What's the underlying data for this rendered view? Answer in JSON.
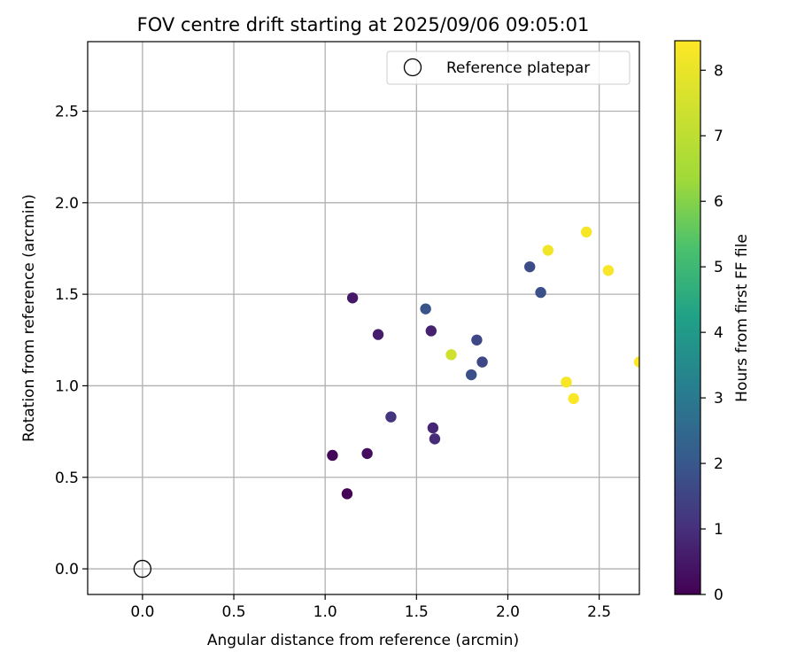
{
  "chart_data": {
    "type": "scatter",
    "title": "FOV centre drift starting at 2025/09/06 09:05:01",
    "xlabel": "Angular distance from reference (arcmin)",
    "ylabel": "Rotation from reference (arcmin)",
    "xlim": [
      -0.3,
      2.72
    ],
    "ylim": [
      -0.14,
      2.88
    ],
    "x_ticks": [
      0.0,
      0.5,
      1.0,
      1.5,
      2.0,
      2.5
    ],
    "x_tick_labels": [
      "0.0",
      "0.5",
      "1.0",
      "1.5",
      "2.0",
      "2.5"
    ],
    "y_ticks": [
      0.0,
      0.5,
      1.0,
      1.5,
      2.0,
      2.5
    ],
    "y_tick_labels": [
      "0.0",
      "0.5",
      "1.0",
      "1.5",
      "2.0",
      "2.5"
    ],
    "grid": true,
    "legend": {
      "position": "top-right",
      "entries": [
        "Reference platepar"
      ]
    },
    "reference_point": {
      "x": 0.0,
      "y": 0.0,
      "label": "Reference platepar"
    },
    "colorbar": {
      "label": "Hours from first FF file",
      "colormap": "viridis",
      "range": [
        0,
        8.45
      ],
      "ticks": [
        0,
        1,
        2,
        3,
        4,
        5,
        6,
        7,
        8
      ],
      "tick_labels": [
        "0",
        "1",
        "2",
        "3",
        "4",
        "5",
        "6",
        "7",
        "8"
      ]
    },
    "points": [
      {
        "x": 1.12,
        "y": 0.41,
        "hours": 0.05
      },
      {
        "x": 1.04,
        "y": 0.62,
        "hours": 0.15
      },
      {
        "x": 1.23,
        "y": 0.63,
        "hours": 0.25
      },
      {
        "x": 1.15,
        "y": 1.48,
        "hours": 0.5
      },
      {
        "x": 1.29,
        "y": 1.28,
        "hours": 0.6
      },
      {
        "x": 1.58,
        "y": 1.3,
        "hours": 0.7
      },
      {
        "x": 1.59,
        "y": 0.77,
        "hours": 0.8
      },
      {
        "x": 1.6,
        "y": 0.71,
        "hours": 0.9
      },
      {
        "x": 1.36,
        "y": 0.83,
        "hours": 1.1
      },
      {
        "x": 1.83,
        "y": 1.25,
        "hours": 1.6
      },
      {
        "x": 1.8,
        "y": 1.06,
        "hours": 1.8
      },
      {
        "x": 1.86,
        "y": 1.13,
        "hours": 1.6
      },
      {
        "x": 1.55,
        "y": 1.42,
        "hours": 1.9
      },
      {
        "x": 2.12,
        "y": 1.65,
        "hours": 1.7
      },
      {
        "x": 2.18,
        "y": 1.51,
        "hours": 1.8
      },
      {
        "x": 1.69,
        "y": 1.17,
        "hours": 7.4
      },
      {
        "x": 2.22,
        "y": 1.74,
        "hours": 8.2
      },
      {
        "x": 2.43,
        "y": 1.84,
        "hours": 8.3
      },
      {
        "x": 2.55,
        "y": 1.63,
        "hours": 8.35
      },
      {
        "x": 2.32,
        "y": 1.02,
        "hours": 8.3
      },
      {
        "x": 2.36,
        "y": 0.93,
        "hours": 8.4
      },
      {
        "x": 2.72,
        "y": 1.13,
        "hours": 8.4
      }
    ]
  }
}
